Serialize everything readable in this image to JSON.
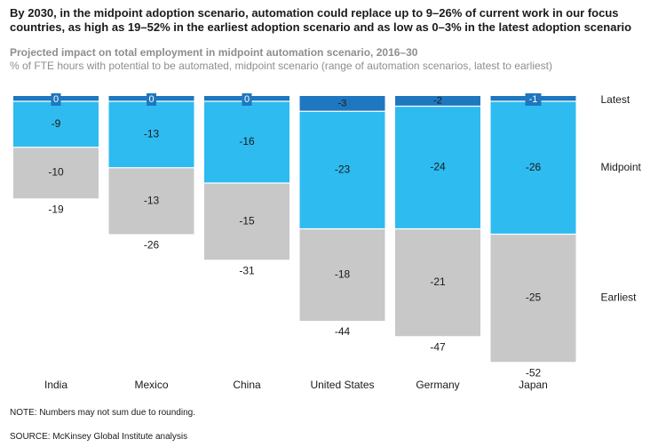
{
  "headline": "By 2030, in the midpoint adoption scenario, automation could replace up to 9–26% of current work in our focus countries, as high as 19–52% in the earliest adoption scenario and as low as 0–3% in the latest adoption scenario",
  "subtitle_bold": "Projected impact on total employment in midpoint automation scenario, 2016–30",
  "subtitle": "% of FTE hours with potential to be automated, midpoint scenario (range of automation scenarios, latest to earliest)",
  "note": "NOTE: Numbers may not sum due to rounding.",
  "source": "SOURCE: McKinsey Global Institute analysis",
  "colors": {
    "latest": "#1f77c0",
    "midpoint": "#2ebbf0",
    "earliest": "#c8c8c8"
  },
  "chart_data": {
    "type": "bar",
    "stacked": true,
    "direction": "downward",
    "categories": [
      "India",
      "Mexico",
      "China",
      "United States",
      "Germany",
      "Japan"
    ],
    "series": [
      {
        "name": "Latest",
        "labels": [
          "0",
          "0",
          "0",
          "-3",
          "-2",
          "-1"
        ],
        "values": [
          0,
          0,
          0,
          -3,
          -2,
          -1
        ]
      },
      {
        "name": "Midpoint",
        "labels": [
          "-9",
          "-13",
          "-16",
          "-23",
          "-24",
          "-26"
        ],
        "values": [
          -9,
          -13,
          -16,
          -23,
          -24,
          -26
        ]
      },
      {
        "name": "Earliest",
        "labels": [
          "-10",
          "-13",
          "-15",
          "-18",
          "-21",
          "-25"
        ],
        "values": [
          -10,
          -13,
          -15,
          -18,
          -21,
          -25
        ]
      }
    ],
    "totals": [
      "-19",
      "-26",
      "-31",
      "-44",
      "-47",
      "-52"
    ],
    "total_values": [
      -19,
      -26,
      -31,
      -44,
      -47,
      -52
    ],
    "ylim": [
      -52,
      0
    ],
    "legend": "right, beside Japan bar"
  }
}
